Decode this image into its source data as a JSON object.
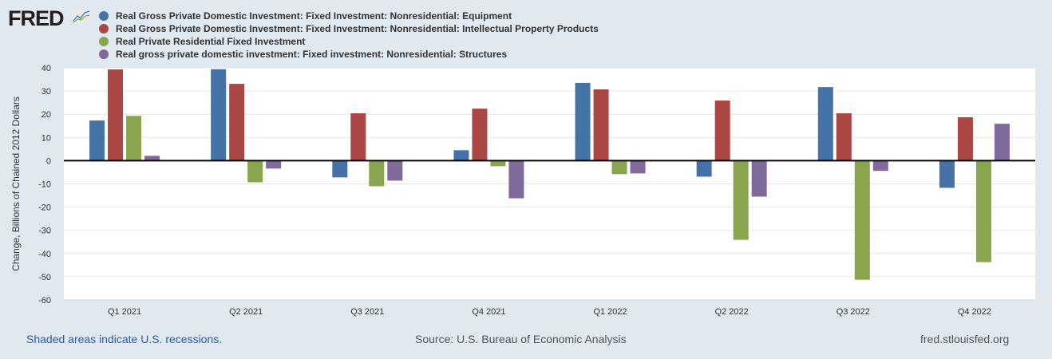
{
  "logo": "FRED",
  "footer": {
    "note": "Shaded areas indicate U.S. recessions.",
    "source": "Source: U.S. Bureau of Economic Analysis",
    "site": "fred.stlouisfed.org"
  },
  "chart_data": {
    "type": "bar",
    "title": "",
    "xlabel": "",
    "ylabel": "Change, Billions of Chained 2012 Dollars",
    "ylim": [
      -60,
      40
    ],
    "yticks": [
      "40",
      "30",
      "20",
      "10",
      "0",
      "-10",
      "-20",
      "-30",
      "-40",
      "-50",
      "-60"
    ],
    "grid": true,
    "legend_position": "top-left",
    "categories": [
      "Q1 2021",
      "Q2 2021",
      "Q3 2021",
      "Q4 2021",
      "Q1 2022",
      "Q2 2022",
      "Q3 2022",
      "Q4 2022"
    ],
    "series": [
      {
        "name": "Real Gross Private Domestic Investment: Fixed Investment: Nonresidential: Equipment",
        "color": "#4572a7",
        "values": [
          17.3,
          39.4,
          -7.2,
          4.5,
          33.5,
          -6.9,
          31.7,
          -11.7
        ]
      },
      {
        "name": "Real Gross Private Domestic Investment: Fixed Investment: Nonresidential: Intellectual Property Products",
        "color": "#aa4643",
        "values": [
          39.3,
          33.1,
          20.4,
          22.4,
          30.7,
          25.9,
          20.4,
          18.7
        ]
      },
      {
        "name": "Real Private Residential Fixed Investment",
        "color": "#89a54e",
        "values": [
          19.3,
          -9.3,
          -11.0,
          -2.4,
          -5.8,
          -34.1,
          -51.3,
          -43.7
        ]
      },
      {
        "name": "Real gross private domestic investment: Fixed investment: Nonresidential: Structures",
        "color": "#80699b",
        "values": [
          2.1,
          -3.4,
          -8.6,
          -16.2,
          -5.5,
          -15.5,
          -4.4,
          15.9
        ]
      }
    ]
  }
}
